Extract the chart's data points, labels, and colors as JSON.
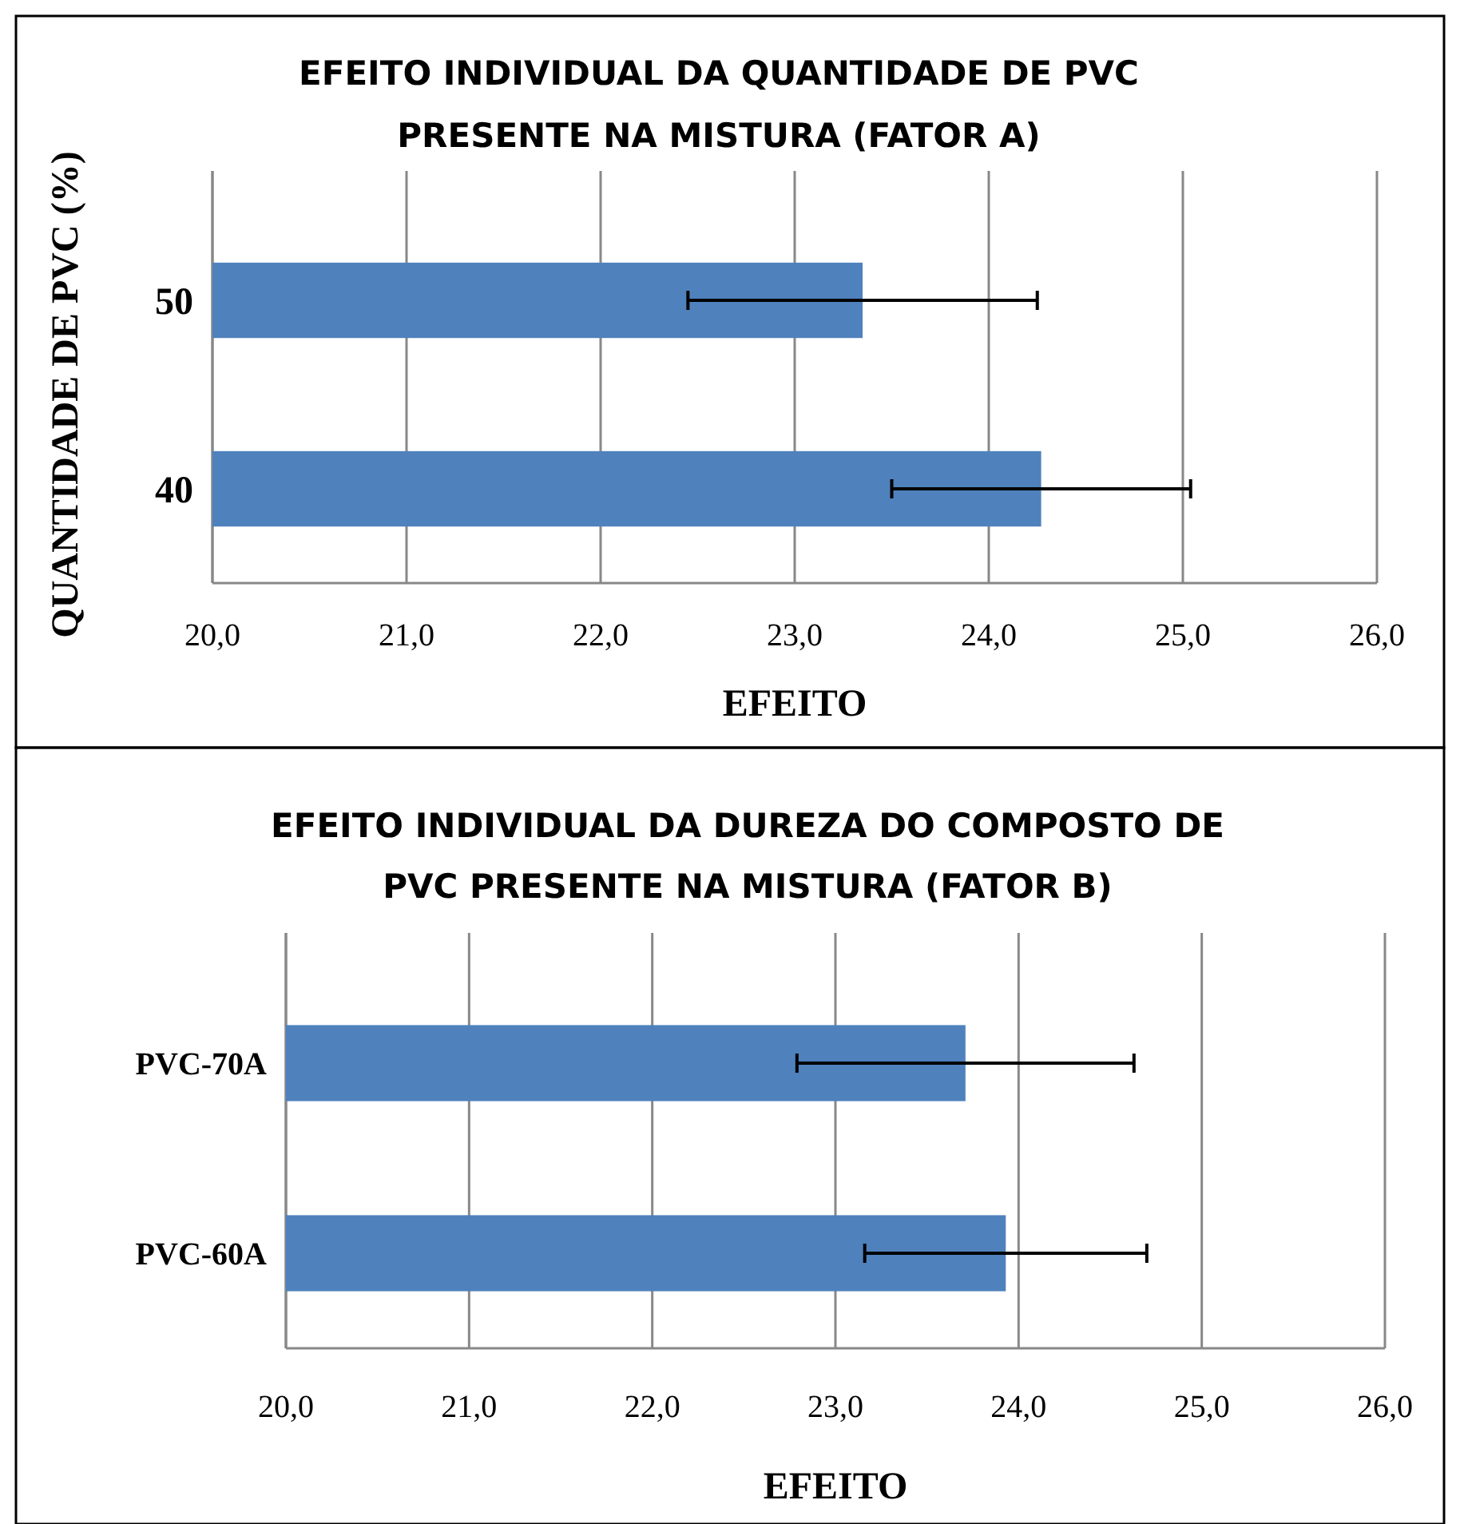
{
  "chart_data": [
    {
      "type": "bar",
      "orientation": "horizontal",
      "title": "EFEITO INDIVIDUAL DA QUANTIDADE DE PVC PRESENTE NA MISTURA (FATOR A)",
      "xlabel": "EFEITO",
      "ylabel": "QUANTIDADE DE PVC (%)",
      "categories": [
        "50",
        "40"
      ],
      "values": [
        23.35,
        24.27
      ],
      "errors": [
        0.9,
        0.77
      ],
      "color": "#4f81bd",
      "xlim": [
        20,
        26
      ],
      "xticks": [
        {
          "value": 20,
          "label": "20,0"
        },
        {
          "value": 21,
          "label": "21,0"
        },
        {
          "value": 22,
          "label": "22,0"
        },
        {
          "value": 23,
          "label": "23,0"
        },
        {
          "value": 24,
          "label": "24,0"
        },
        {
          "value": 25,
          "label": "25,0"
        },
        {
          "value": 26,
          "label": "26,0"
        }
      ],
      "grid": "x"
    },
    {
      "type": "bar",
      "orientation": "horizontal",
      "title": "EFEITO INDIVIDUAL DA DUREZA DO COMPOSTO DE PVC PRESENTE NA MISTURA (FATOR B)",
      "xlabel": "EFEITO",
      "categories": [
        "PVC-70A",
        "PVC-60A"
      ],
      "values": [
        23.71,
        23.93
      ],
      "errors": [
        0.92,
        0.77
      ],
      "color": "#4f81bd",
      "xlim": [
        20,
        26
      ],
      "xticks": [
        {
          "value": 20,
          "label": "20,0"
        },
        {
          "value": 21,
          "label": "21,0"
        },
        {
          "value": 22,
          "label": "22,0"
        },
        {
          "value": 23,
          "label": "23,0"
        },
        {
          "value": 24,
          "label": "24,0"
        },
        {
          "value": 25,
          "label": "25,0"
        },
        {
          "value": 26,
          "label": "26,0"
        }
      ],
      "grid": "x"
    }
  ]
}
